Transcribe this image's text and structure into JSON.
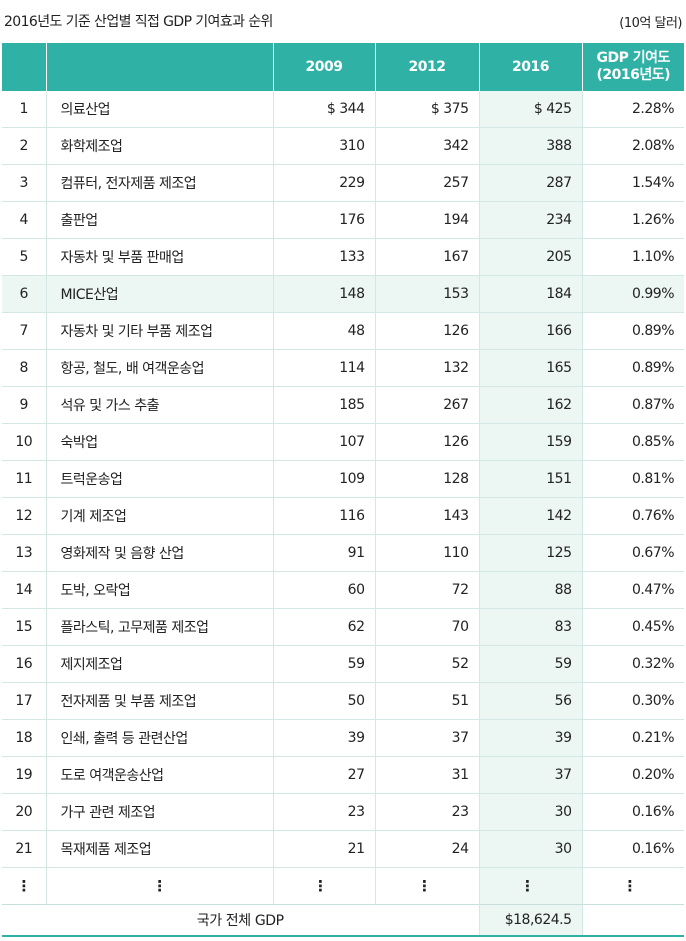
{
  "caption": "2016년도 기준 산업별 직접 GDP 기여효과 순위",
  "unit": "(10억 달러)",
  "colors": {
    "header_bg": "#2fb1a5",
    "highlight_bg": "#ecf6f3",
    "grid": "#d3e7e4"
  },
  "header": {
    "rank": "",
    "industry": "",
    "y2009": "2009",
    "y2012": "2012",
    "y2016": "2016",
    "contribution_line1": "GDP 기여도",
    "contribution_line2": "(2016년도)"
  },
  "rows": [
    {
      "rank": "1",
      "name": "의료산업",
      "v2009": "$ 344",
      "v2012": "$ 375",
      "v2016": "$ 425",
      "pct": "2.28%"
    },
    {
      "rank": "2",
      "name": "화학제조업",
      "v2009": "310",
      "v2012": "342",
      "v2016": "388",
      "pct": "2.08%"
    },
    {
      "rank": "3",
      "name": "컴퓨터, 전자제품 제조업",
      "v2009": "229",
      "v2012": "257",
      "v2016": "287",
      "pct": "1.54%"
    },
    {
      "rank": "4",
      "name": "출판업",
      "v2009": "176",
      "v2012": "194",
      "v2016": "234",
      "pct": "1.26%"
    },
    {
      "rank": "5",
      "name": "자동차 및 부품 판매업",
      "v2009": "133",
      "v2012": "167",
      "v2016": "205",
      "pct": "1.10%"
    },
    {
      "rank": "6",
      "name": "MICE산업",
      "v2009": "148",
      "v2012": "153",
      "v2016": "184",
      "pct": "0.99%"
    },
    {
      "rank": "7",
      "name": "자동차 및 기타 부품 제조업",
      "v2009": "48",
      "v2012": "126",
      "v2016": "166",
      "pct": "0.89%"
    },
    {
      "rank": "8",
      "name": "항공, 철도, 배 여객운송업",
      "v2009": "114",
      "v2012": "132",
      "v2016": "165",
      "pct": "0.89%"
    },
    {
      "rank": "9",
      "name": "석유 및 가스 추출",
      "v2009": "185",
      "v2012": "267",
      "v2016": "162",
      "pct": "0.87%"
    },
    {
      "rank": "10",
      "name": "숙박업",
      "v2009": "107",
      "v2012": "126",
      "v2016": "159",
      "pct": "0.85%"
    },
    {
      "rank": "11",
      "name": "트럭운송업",
      "v2009": "109",
      "v2012": "128",
      "v2016": "151",
      "pct": "0.81%"
    },
    {
      "rank": "12",
      "name": "기계 제조업",
      "v2009": "116",
      "v2012": "143",
      "v2016": "142",
      "pct": "0.76%"
    },
    {
      "rank": "13",
      "name": "영화제작 및 음향 산업",
      "v2009": "91",
      "v2012": "110",
      "v2016": "125",
      "pct": "0.67%"
    },
    {
      "rank": "14",
      "name": "도박, 오락업",
      "v2009": "60",
      "v2012": "72",
      "v2016": "88",
      "pct": "0.47%"
    },
    {
      "rank": "15",
      "name": "플라스틱, 고무제품 제조업",
      "v2009": "62",
      "v2012": "70",
      "v2016": "83",
      "pct": "0.45%"
    },
    {
      "rank": "16",
      "name": "제지제조업",
      "v2009": "59",
      "v2012": "52",
      "v2016": "59",
      "pct": "0.32%"
    },
    {
      "rank": "17",
      "name": "전자제품 및 부품 제조업",
      "v2009": "50",
      "v2012": "51",
      "v2016": "56",
      "pct": "0.30%"
    },
    {
      "rank": "18",
      "name": "인쇄, 출력 등 관련산업",
      "v2009": "39",
      "v2012": "37",
      "v2016": "39",
      "pct": "0.21%"
    },
    {
      "rank": "19",
      "name": "도로 여객운송산업",
      "v2009": "27",
      "v2012": "31",
      "v2016": "37",
      "pct": "0.20%"
    },
    {
      "rank": "20",
      "name": "가구 관련 제조업",
      "v2009": "23",
      "v2012": "23",
      "v2016": "30",
      "pct": "0.16%"
    },
    {
      "rank": "21",
      "name": "목재제품 제조업",
      "v2009": "21",
      "v2012": "24",
      "v2016": "30",
      "pct": "0.16%"
    }
  ],
  "ellipsis": "⋮",
  "total": {
    "label": "국가 전체 GDP",
    "v2016": "$18,624.5"
  }
}
